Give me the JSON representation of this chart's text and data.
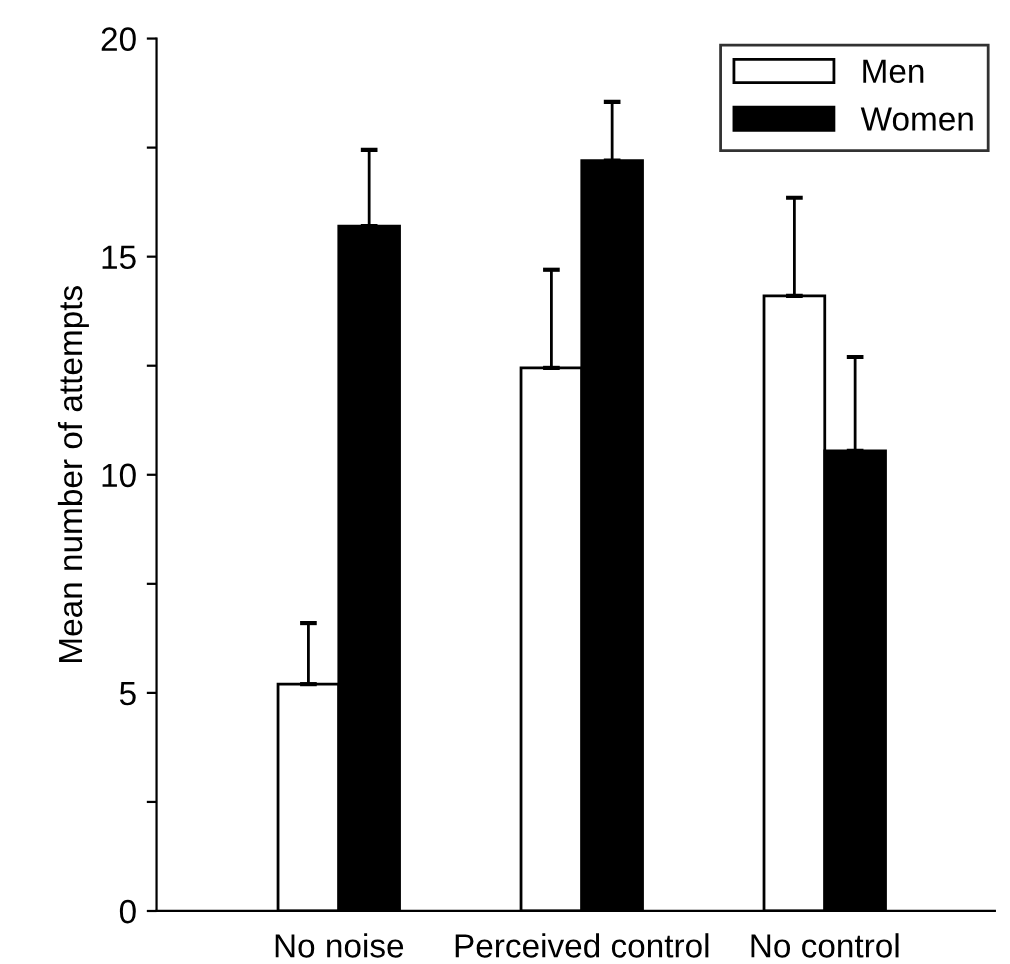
{
  "chart_data": {
    "type": "bar",
    "ylabel": "Mean number of attempts",
    "categories": [
      "No noise",
      "Perceived control",
      "No control"
    ],
    "series": [
      {
        "name": "Men",
        "color": "#ffffff",
        "values": [
          5.2,
          12.45,
          14.1
        ],
        "errors": [
          [
            5.2,
            6.6
          ],
          [
            12.45,
            14.7
          ],
          [
            14.1,
            16.35
          ]
        ]
      },
      {
        "name": "Women",
        "color": "#000000",
        "values": [
          15.7,
          17.2,
          10.55
        ],
        "errors": [
          [
            15.7,
            17.45
          ],
          [
            17.2,
            18.55
          ],
          [
            10.55,
            12.7
          ]
        ]
      }
    ],
    "ylim": [
      0,
      20
    ],
    "yticks": [
      0,
      {
        "value": 2.5,
        "label": null
      },
      5,
      {
        "value": 7.5,
        "label": null
      },
      10,
      {
        "value": 12.5,
        "label": null
      },
      15,
      {
        "value": 17.5,
        "label": null
      },
      20
    ],
    "grid": false,
    "legend": "top right"
  }
}
